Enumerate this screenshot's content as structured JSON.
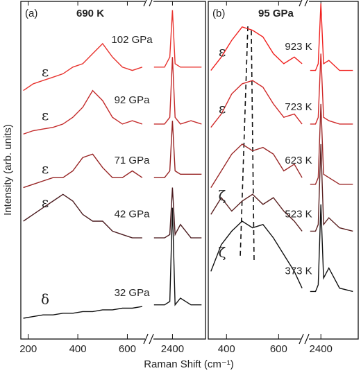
{
  "y_label": "Intensity (arb. units)",
  "x_label": "Raman Shift (cm⁻¹)",
  "chart_data": [
    {
      "type": "line",
      "panel_label": "(a)",
      "title": "690 K",
      "xlim": [
        [
          170,
          680
        ],
        [
          2320,
          2525
        ]
      ],
      "xticks": [
        200,
        400,
        600,
        2400
      ],
      "ylim": [
        0,
        100
      ],
      "series": [
        {
          "name": "102 GPa",
          "phase": "ε",
          "color": "#e8332e",
          "x": [
            180,
            220,
            260,
            300,
            340,
            380,
            420,
            460,
            500,
            540,
            580,
            620,
            660,
            2330,
            2370,
            2390,
            2400,
            2410,
            2430,
            2470,
            2510
          ],
          "values": [
            74,
            76,
            77,
            78,
            79,
            81,
            82,
            85,
            88,
            84,
            81,
            80,
            81,
            81,
            81,
            84,
            98,
            82,
            81,
            81,
            81
          ]
        },
        {
          "name": "92 GPa",
          "phase": "ε",
          "color": "#c42a2a",
          "x": [
            180,
            220,
            260,
            300,
            340,
            380,
            420,
            460,
            500,
            540,
            580,
            620,
            660,
            2330,
            2370,
            2390,
            2400,
            2410,
            2430,
            2470,
            2510
          ],
          "values": [
            61,
            62,
            62.5,
            63,
            64,
            66,
            69,
            74,
            71,
            66,
            64,
            65,
            64,
            64,
            64,
            66,
            84,
            66,
            64,
            65,
            64
          ]
        },
        {
          "name": "71 GPa",
          "phase": "ε",
          "color": "#962222",
          "x": [
            180,
            220,
            260,
            300,
            340,
            380,
            420,
            460,
            500,
            540,
            580,
            620,
            660,
            2330,
            2370,
            2390,
            2400,
            2410,
            2430,
            2470,
            2510
          ],
          "values": [
            45,
            46,
            47,
            48,
            48,
            50,
            54,
            55,
            51,
            48,
            48,
            50,
            48,
            48,
            48,
            50,
            65,
            50,
            49,
            49,
            49
          ]
        },
        {
          "name": "42 GPa",
          "phase": "ε",
          "color": "#4a1a1e",
          "x": [
            180,
            220,
            260,
            300,
            340,
            380,
            420,
            460,
            500,
            540,
            580,
            620,
            660,
            2330,
            2370,
            2390,
            2400,
            2410,
            2430,
            2470,
            2510
          ],
          "values": [
            35,
            37,
            39,
            41,
            43,
            41,
            37,
            35,
            35,
            32,
            31,
            30,
            30,
            30,
            30,
            31,
            45,
            31,
            34,
            30,
            30
          ]
        },
        {
          "name": "32 GPa",
          "phase": "δ",
          "color": "#111111",
          "x": [
            180,
            220,
            260,
            300,
            340,
            380,
            420,
            460,
            500,
            540,
            580,
            620,
            660,
            2330,
            2370,
            2390,
            2400,
            2410,
            2430,
            2470,
            2510
          ],
          "values": [
            6,
            6.5,
            7,
            7,
            7.5,
            7.5,
            8,
            8,
            8.5,
            8.5,
            9,
            9,
            9.5,
            10,
            10,
            11,
            39,
            10,
            12,
            10,
            10
          ]
        }
      ]
    },
    {
      "type": "line",
      "panel_label": "(b)",
      "title": "95 GPa",
      "xlim": [
        [
          330,
          695
        ],
        [
          2350,
          2540
        ]
      ],
      "xticks": [
        400,
        600,
        2400
      ],
      "ylim": [
        0,
        100
      ],
      "series": [
        {
          "name": "923 K",
          "phase": "ε",
          "color": "#f0201e",
          "x": [
            340,
            380,
            420,
            460,
            500,
            540,
            580,
            620,
            660,
            690,
            2360,
            2380,
            2390,
            2400,
            2410,
            2430,
            2470,
            2520
          ],
          "values": [
            80,
            84,
            89,
            93,
            92,
            90,
            85,
            82,
            84,
            82,
            80,
            80,
            82,
            100,
            82,
            83,
            80,
            80
          ]
        },
        {
          "name": "723 K",
          "phase": "ε",
          "color": "#d02828",
          "x": [
            340,
            380,
            420,
            460,
            500,
            540,
            580,
            620,
            660,
            690,
            2360,
            2380,
            2390,
            2400,
            2410,
            2430,
            2470,
            2520
          ],
          "values": [
            63,
            67,
            73,
            76,
            77,
            75,
            70,
            66,
            67,
            64,
            64,
            64,
            66,
            85,
            66,
            65,
            64,
            64
          ]
        },
        {
          "name": "623 K",
          "color": "#9a2828",
          "x": [
            340,
            380,
            420,
            460,
            500,
            540,
            580,
            620,
            660,
            690,
            2360,
            2380,
            2390,
            2400,
            2410,
            2430,
            2470,
            2520
          ],
          "values": [
            45,
            50,
            55,
            58,
            56,
            57,
            55,
            50,
            52,
            48,
            46,
            46,
            48,
            70,
            49,
            48,
            46,
            46
          ]
        },
        {
          "name": "523 K",
          "phase": "ζ",
          "color": "#5a2020",
          "x": [
            340,
            380,
            420,
            460,
            500,
            540,
            580,
            620,
            660,
            690,
            2360,
            2380,
            2390,
            2400,
            2410,
            2430,
            2470,
            2520
          ],
          "values": [
            37,
            42,
            38,
            41,
            43,
            40,
            42,
            38,
            35,
            32,
            32,
            32,
            34,
            58,
            34,
            36,
            33,
            32
          ]
        },
        {
          "name": "373 K",
          "phase": "ζ",
          "color": "#111111",
          "x": [
            340,
            380,
            420,
            460,
            500,
            540,
            580,
            620,
            660,
            690,
            2360,
            2380,
            2390,
            2400,
            2410,
            2430,
            2470,
            2520
          ],
          "values": [
            20,
            28,
            32,
            35,
            33,
            34,
            30,
            25,
            20,
            15,
            14,
            14,
            16,
            40,
            18,
            21,
            15,
            14
          ]
        }
      ]
    }
  ]
}
